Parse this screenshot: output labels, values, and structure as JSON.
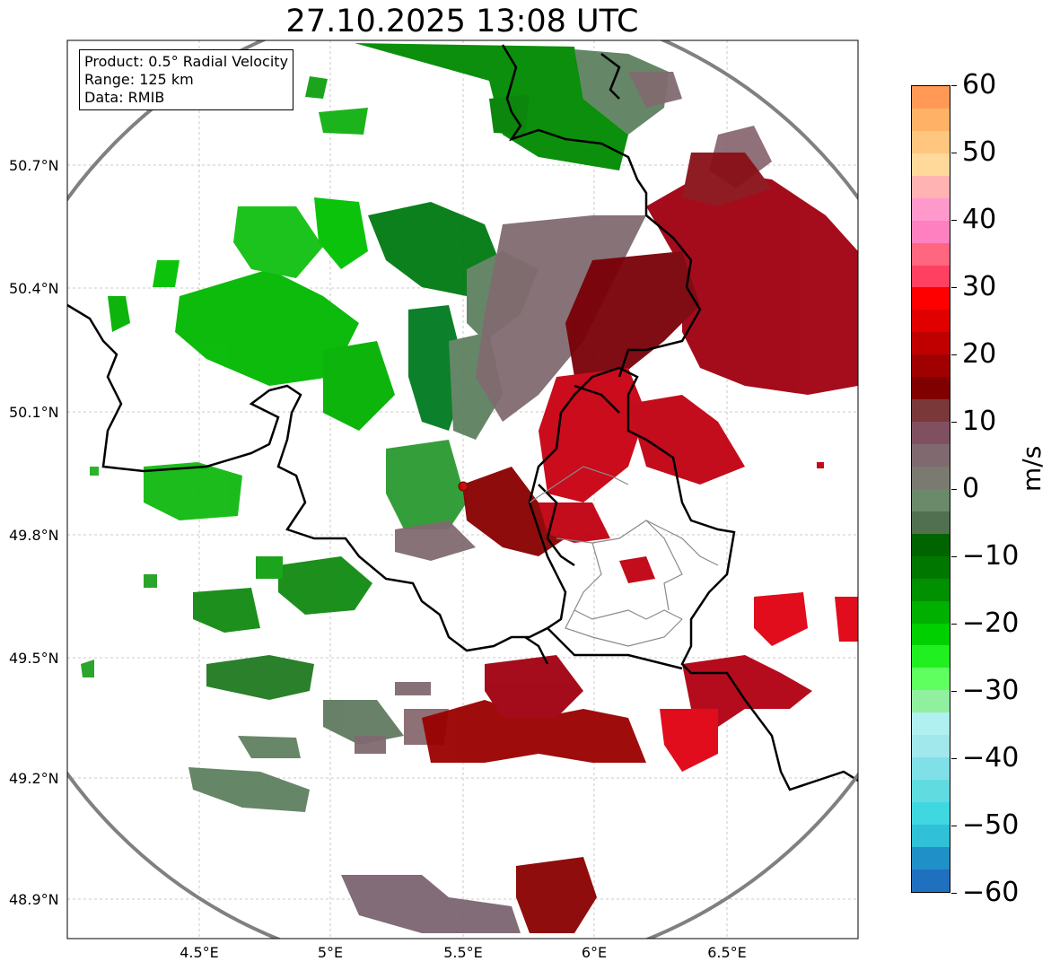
{
  "title": "27.10.2025 13:08 UTC",
  "info_box": {
    "product": "Product: 0.5° Radial Velocity",
    "range": "Range: 125 km",
    "data": "Data: RMIB"
  },
  "lat_labels": [
    "50.7°N",
    "50.4°N",
    "50.1°N",
    "49.8°N",
    "49.5°N",
    "49.2°N",
    "48.9°N"
  ],
  "lon_labels": [
    "4.5°E",
    "5°E",
    "5.5°E",
    "6°E",
    "6.5°E"
  ],
  "colorbar": {
    "unit": "m/s",
    "ticks": [
      "60",
      "50",
      "40",
      "30",
      "20",
      "10",
      "0",
      "−10",
      "−20",
      "−30",
      "−40",
      "−50",
      "−60"
    ],
    "stops": [
      "#ff9955",
      "#ffb266",
      "#ffc680",
      "#ffd999",
      "#ffb3b3",
      "#ff99cc",
      "#ff80c0",
      "#ff6680",
      "#ff4060",
      "#ff0000",
      "#e00000",
      "#c00000",
      "#a00000",
      "#800000",
      "#7a3838",
      "#805060",
      "#806a70",
      "#7a7a70",
      "#6a8a6a",
      "#507050",
      "#006400",
      "#007800",
      "#009000",
      "#00b000",
      "#00d000",
      "#20f020",
      "#60ff60",
      "#90f0a0",
      "#b0f0f0",
      "#a0e8ec",
      "#80e0e8",
      "#60dce0",
      "#40d8e0",
      "#30c0d8",
      "#2090c8",
      "#2070c0"
    ]
  }
}
